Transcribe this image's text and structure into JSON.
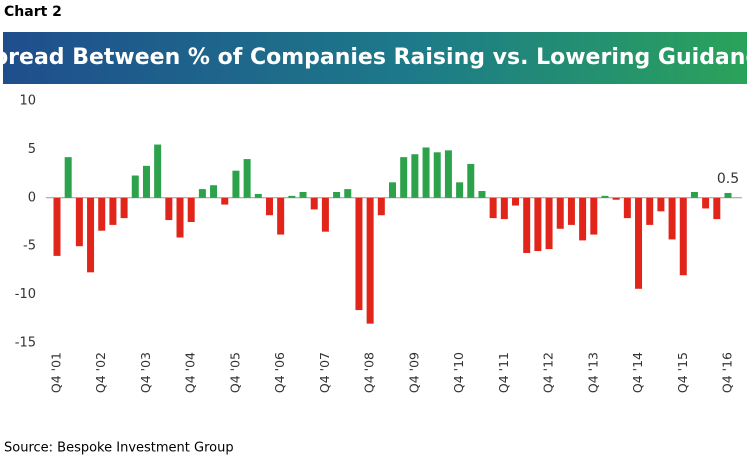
{
  "chart_data": {
    "type": "bar",
    "label": "Chart 2",
    "title": "Spread Between % of Companies Raising vs. Lowering Guidance",
    "source": "Source: Bespoke Investment Group",
    "categories": [
      "Q4 '01",
      null,
      null,
      null,
      "Q4 '02",
      null,
      null,
      null,
      "Q4 '03",
      null,
      null,
      null,
      "Q4 '04",
      null,
      null,
      null,
      "Q4 '05",
      null,
      null,
      null,
      "Q4 '06",
      null,
      null,
      null,
      "Q4 '07",
      null,
      null,
      null,
      "Q4 '08",
      null,
      null,
      null,
      "Q4 '09",
      null,
      null,
      null,
      "Q4 '10",
      null,
      null,
      null,
      "Q4 '11",
      null,
      null,
      null,
      "Q4 '12",
      null,
      null,
      null,
      "Q4 '13",
      null,
      null,
      null,
      "Q4 '14",
      null,
      null,
      null,
      "Q4 '15",
      null,
      null,
      null,
      "Q4 '16"
    ],
    "values": [
      -6,
      4.2,
      -5,
      -7.7,
      -3.4,
      -2.8,
      -2.1,
      2.3,
      3.3,
      5.5,
      -2.3,
      -4.1,
      -2.5,
      0.9,
      1.3,
      -0.7,
      2.8,
      4.0,
      0.4,
      -1.8,
      -3.8,
      0.2,
      0.6,
      -1.2,
      -3.5,
      0.6,
      0.9,
      -11.6,
      -13,
      -1.8,
      1.6,
      4.2,
      4.5,
      5.2,
      4.7,
      4.9,
      1.6,
      3.5,
      0.7,
      -2.1,
      -2.2,
      -0.8,
      -5.7,
      -5.5,
      -5.3,
      -3.2,
      -2.8,
      -4.4,
      -3.8,
      0.2,
      -0.2,
      -2.1,
      -9.4,
      -2.8,
      -1.4,
      -4.3,
      -8,
      0.6,
      -1.1,
      -2.2,
      0.5
    ],
    "value_labels": [
      null,
      null,
      null,
      null,
      null,
      null,
      null,
      null,
      null,
      null,
      null,
      null,
      null,
      null,
      null,
      null,
      null,
      null,
      null,
      null,
      null,
      null,
      null,
      null,
      null,
      null,
      null,
      null,
      null,
      null,
      null,
      null,
      null,
      null,
      null,
      null,
      null,
      null,
      null,
      null,
      null,
      null,
      null,
      null,
      null,
      null,
      null,
      null,
      null,
      null,
      null,
      null,
      null,
      null,
      null,
      null,
      null,
      null,
      null,
      null,
      "0.5"
    ],
    "positive_color": "#2ca24a",
    "negative_color": "#e2251a",
    "ylim": [
      -15,
      10
    ],
    "yticks": [
      10,
      5,
      0,
      -5,
      -10,
      -15
    ]
  }
}
